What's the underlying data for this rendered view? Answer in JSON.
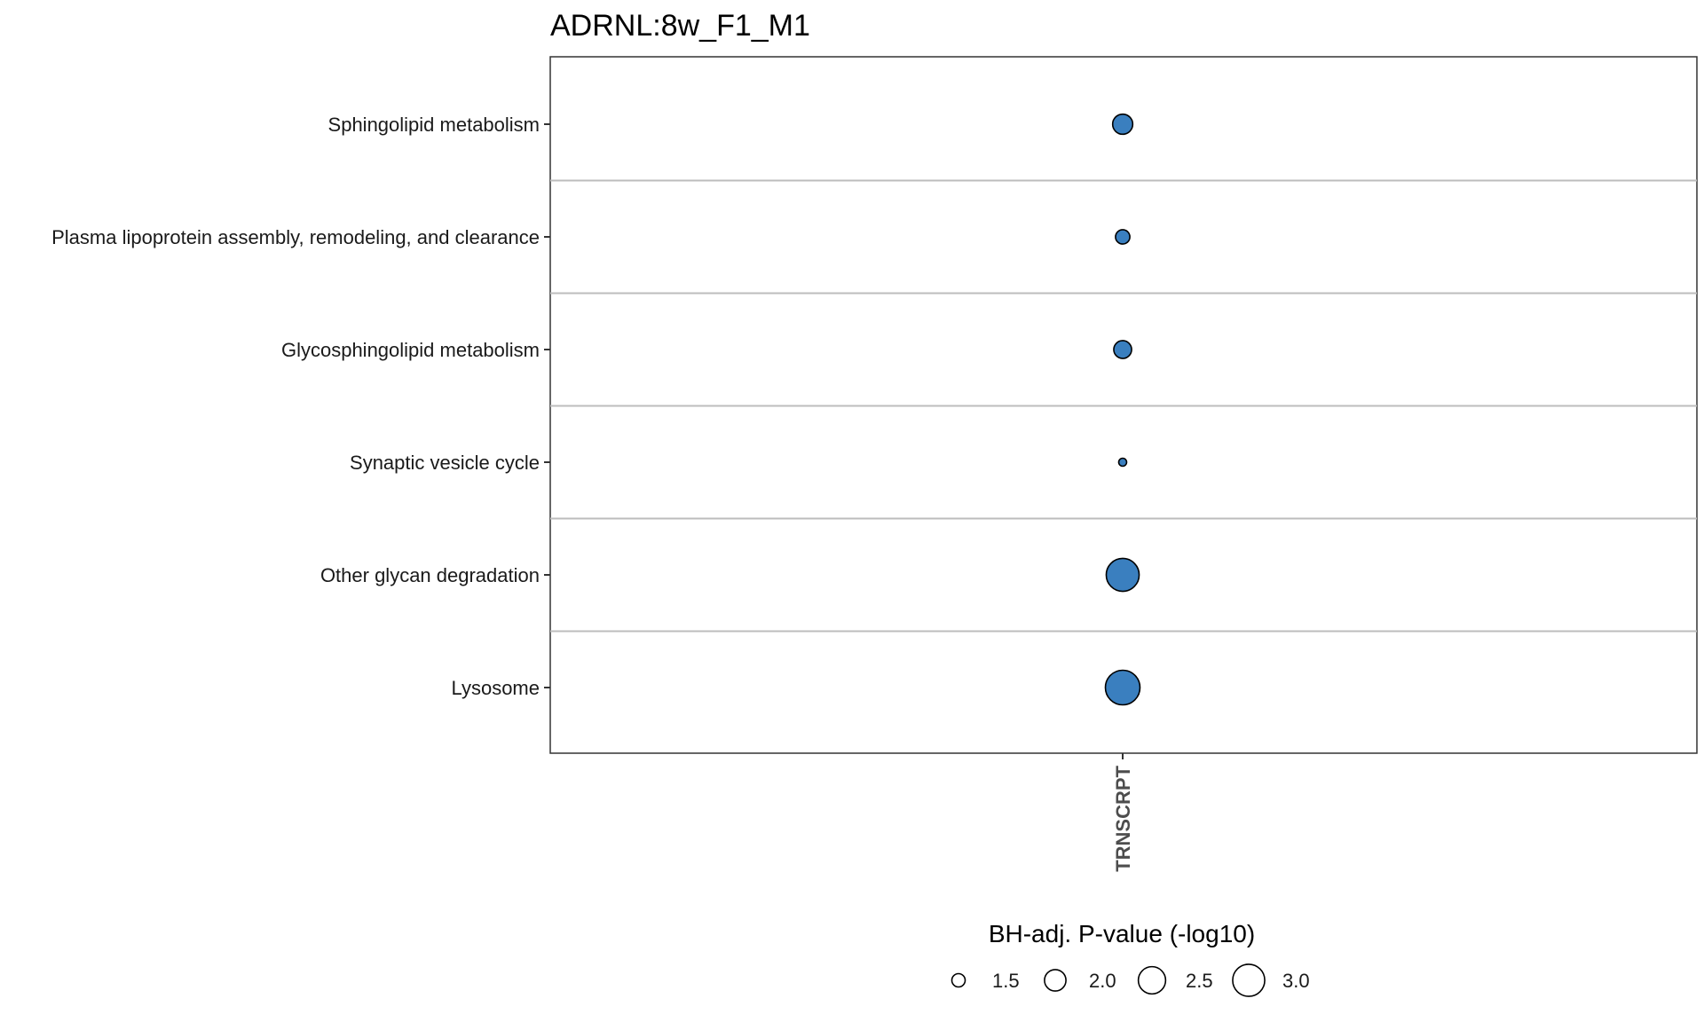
{
  "chart_data": {
    "type": "scatter",
    "title": "ADRNL:8w_F1_M1",
    "x_categories": [
      "TRNSCRPT"
    ],
    "y_categories": [
      "Sphingolipid metabolism",
      "Plasma lipoprotein assembly, remodeling, and clearance",
      "Glycosphingolipid metabolism",
      "Synaptic vesicle cycle",
      "Other glycan degradation",
      "Lysosome"
    ],
    "points": [
      {
        "x": "TRNSCRPT",
        "y": "Sphingolipid metabolism",
        "size": 1.9
      },
      {
        "x": "TRNSCRPT",
        "y": "Plasma lipoprotein assembly, remodeling, and clearance",
        "size": 1.55
      },
      {
        "x": "TRNSCRPT",
        "y": "Glycosphingolipid metabolism",
        "size": 1.75
      },
      {
        "x": "TRNSCRPT",
        "y": "Synaptic vesicle cycle",
        "size": 1.3
      },
      {
        "x": "TRNSCRPT",
        "y": "Other glycan degradation",
        "size": 3.1
      },
      {
        "x": "TRNSCRPT",
        "y": "Lysosome",
        "size": 3.3
      }
    ],
    "point_color": "#3a7fbf",
    "legend": {
      "title": "BH-adj. P-value (-log10)",
      "position": "bottom",
      "breaks": [
        1.5,
        2.0,
        2.5,
        3.0
      ],
      "labels": [
        "1.5",
        "2.0",
        "2.5",
        "3.0"
      ]
    },
    "grid": "horizontal-separators"
  }
}
